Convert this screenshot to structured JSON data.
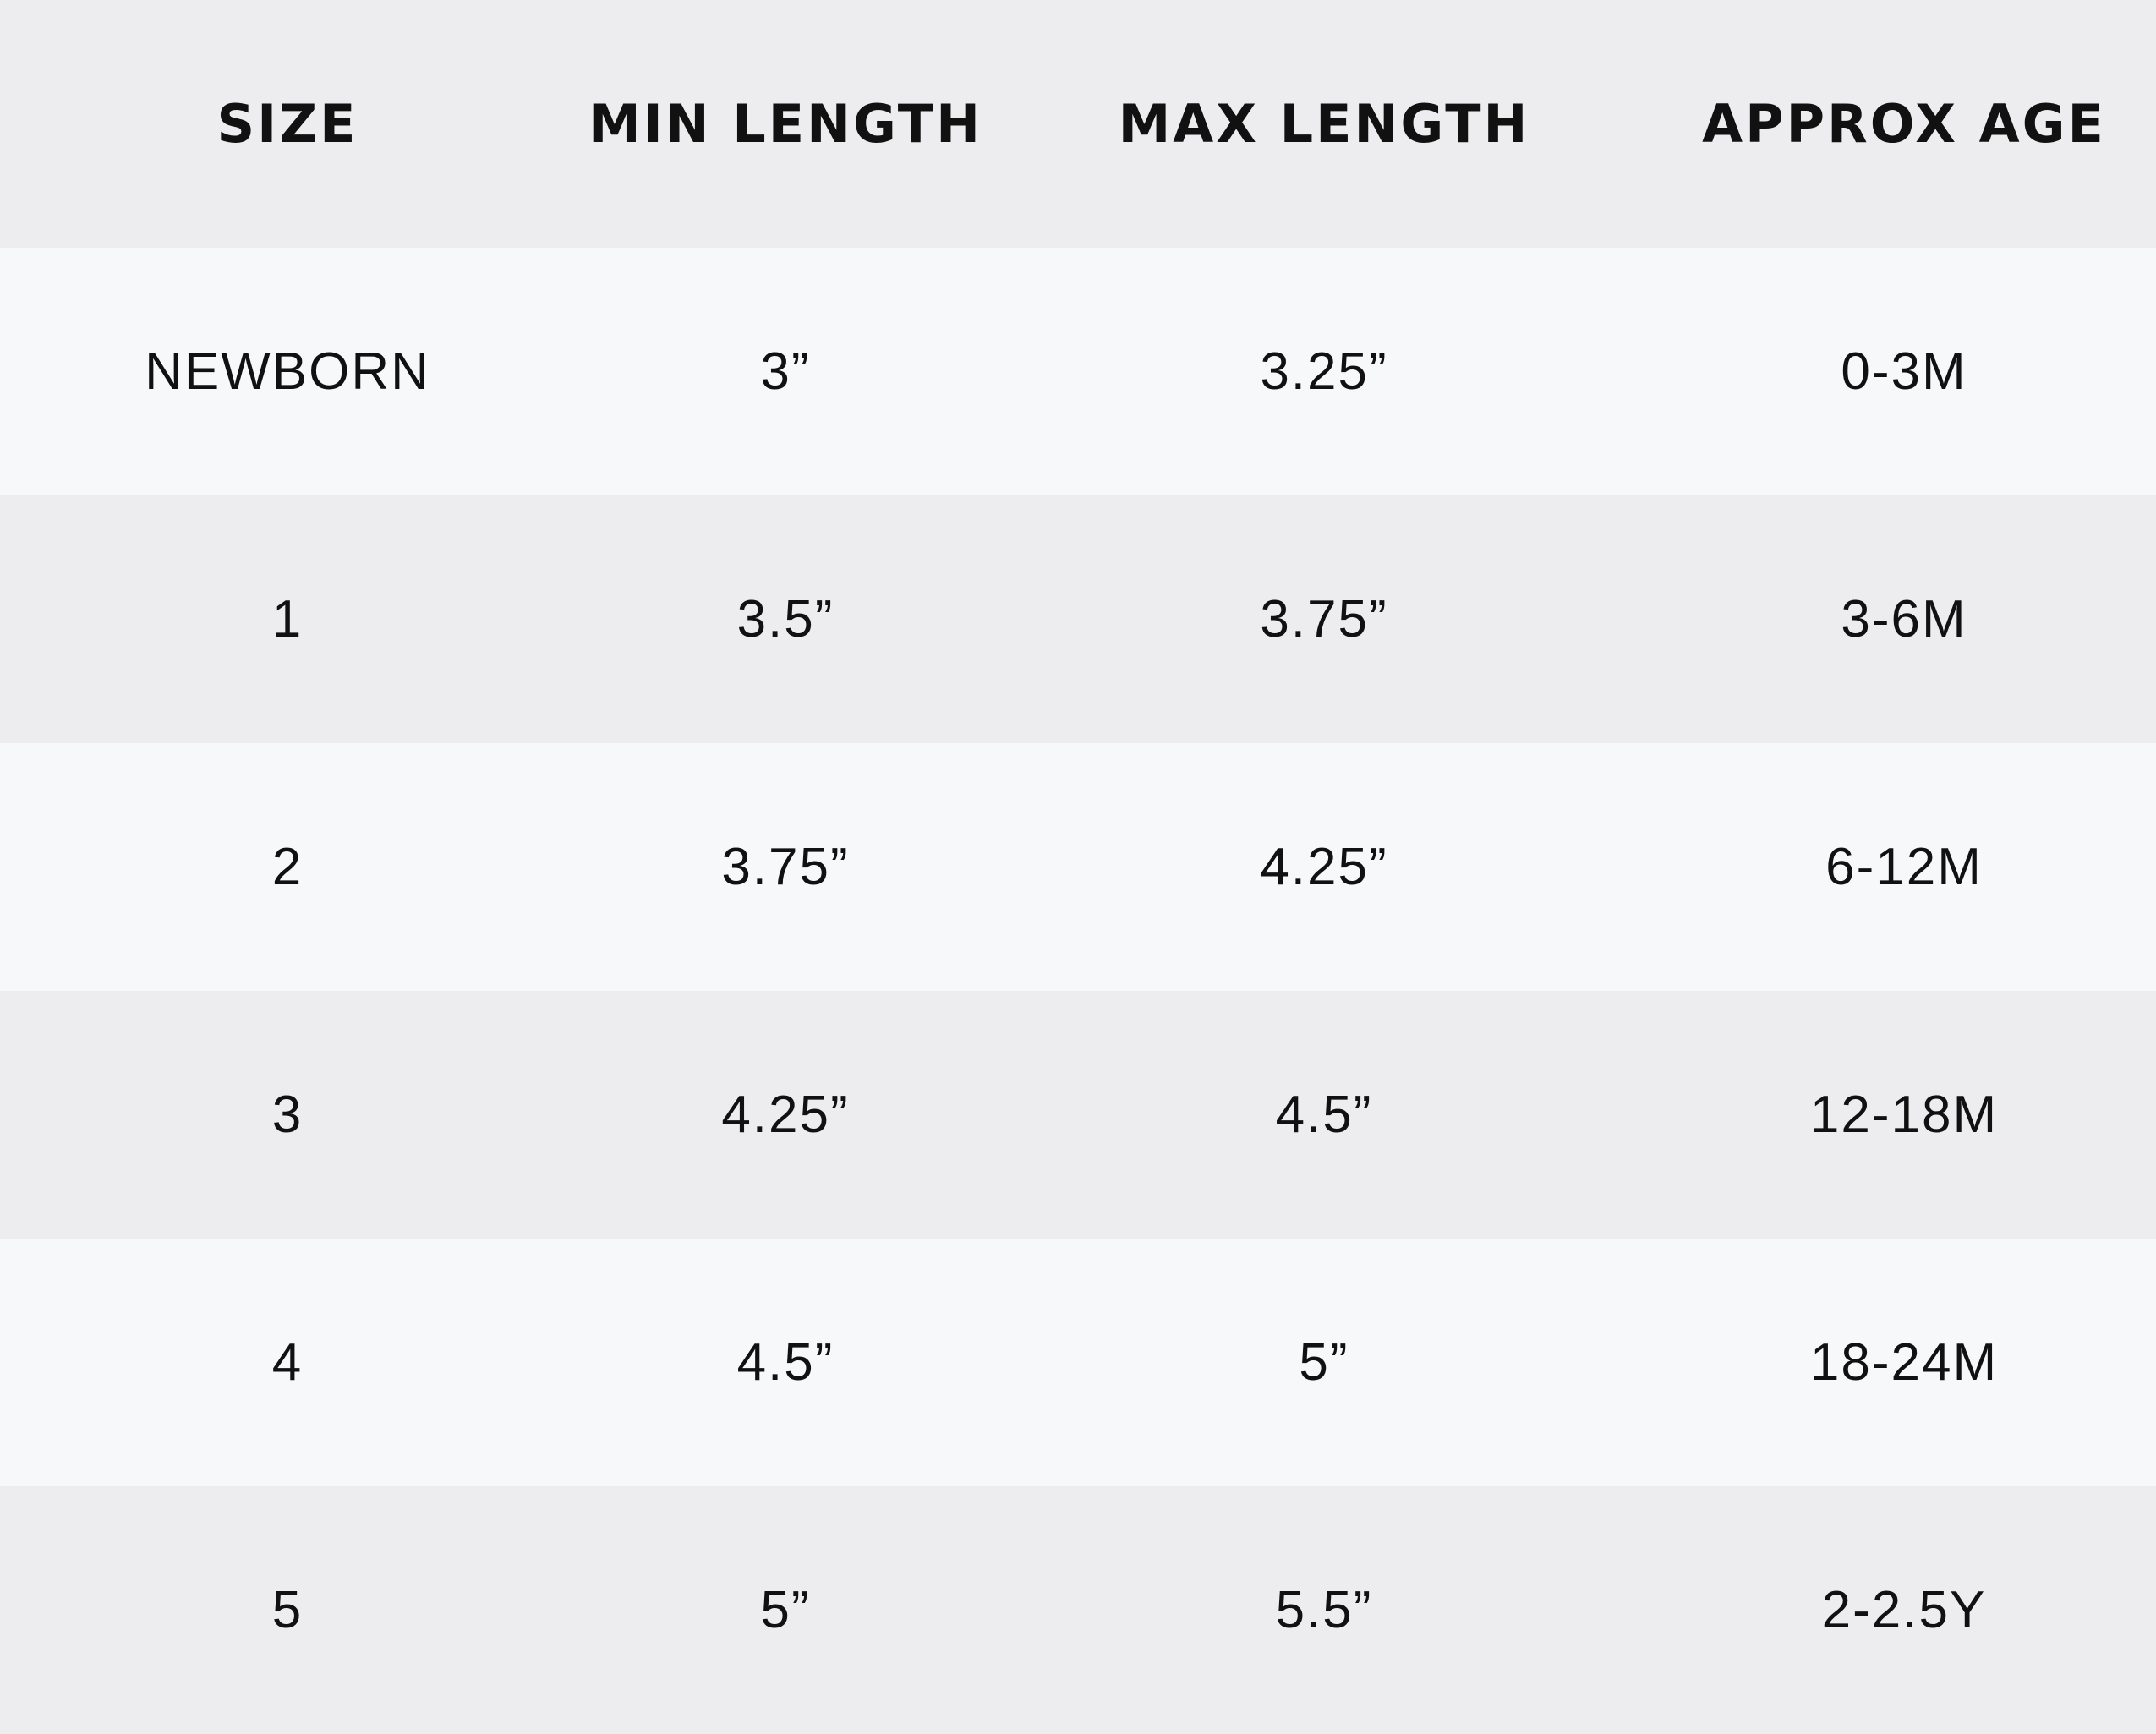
{
  "headers": [
    "SIZE",
    "MIN LENGTH",
    "MAX LENGTH",
    "APPROX AGE"
  ],
  "rows": [
    [
      "NEWBORN",
      "3”",
      "3.25”",
      "0-3M"
    ],
    [
      "1",
      "3.5”",
      "3.75”",
      "3-6M"
    ],
    [
      "2",
      "3.75”",
      "4.25”",
      "6-12M"
    ],
    [
      "3",
      "4.25”",
      "4.5”",
      "12-18M"
    ],
    [
      "4",
      "4.5”",
      "5”",
      "18-24M"
    ],
    [
      "5",
      "5”",
      "5.5”",
      "2-2.5Y"
    ]
  ],
  "colors": {
    "header_bg": "#ededef",
    "row_light": "#f7f8fa",
    "row_dark": "#ededef",
    "text": "#111111"
  }
}
